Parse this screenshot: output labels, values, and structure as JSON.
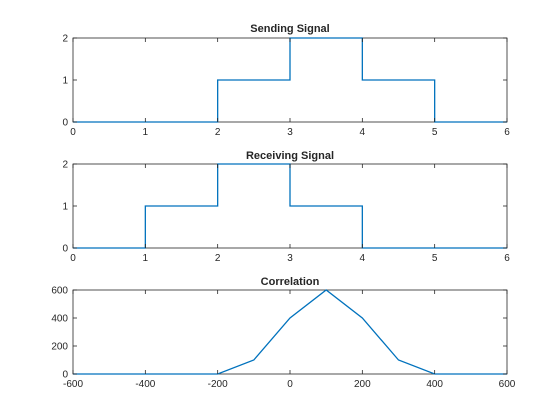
{
  "chart_data": [
    {
      "type": "line",
      "title": "Sending Signal",
      "xlim": [
        0,
        6
      ],
      "ylim": [
        0,
        2
      ],
      "xticks": [
        0,
        1,
        2,
        3,
        4,
        5,
        6
      ],
      "yticks": [
        0,
        1,
        2
      ],
      "xticklabels": [
        "0",
        "1",
        "2",
        "3",
        "4",
        "5",
        "6"
      ],
      "yticklabels": [
        "0",
        "1",
        "2"
      ],
      "series": [
        {
          "color": "#0072bd",
          "x": [
            0,
            2,
            2,
            3,
            3,
            4,
            4,
            5,
            5,
            6
          ],
          "y": [
            0,
            0,
            1,
            1,
            2,
            2,
            1,
            1,
            0,
            0
          ]
        }
      ],
      "grid": false
    },
    {
      "type": "line",
      "title": "Receiving Signal",
      "xlim": [
        0,
        6
      ],
      "ylim": [
        0,
        2
      ],
      "xticks": [
        0,
        1,
        2,
        3,
        4,
        5,
        6
      ],
      "yticks": [
        0,
        1,
        2
      ],
      "xticklabels": [
        "0",
        "1",
        "2",
        "3",
        "4",
        "5",
        "6"
      ],
      "yticklabels": [
        "0",
        "1",
        "2"
      ],
      "series": [
        {
          "color": "#0072bd",
          "x": [
            0,
            1,
            1,
            2,
            2,
            3,
            3,
            4,
            4,
            6
          ],
          "y": [
            0,
            0,
            1,
            1,
            2,
            2,
            1,
            1,
            0,
            0
          ]
        }
      ],
      "grid": false
    },
    {
      "type": "line",
      "title": "Correlation",
      "xlim": [
        -600,
        600
      ],
      "ylim": [
        0,
        600
      ],
      "xticks": [
        -600,
        -400,
        -200,
        0,
        200,
        400,
        600
      ],
      "yticks": [
        0,
        200,
        400,
        600
      ],
      "xticklabels": [
        "-600",
        "-400",
        "-200",
        "0",
        "200",
        "400",
        "600"
      ],
      "yticklabels": [
        "0",
        "200",
        "400",
        "600"
      ],
      "series": [
        {
          "color": "#0072bd",
          "x": [
            -600,
            -500,
            -400,
            -300,
            -200,
            -100,
            0,
            100,
            200,
            300,
            400,
            500,
            600
          ],
          "y": [
            0,
            0,
            0,
            0,
            0,
            100,
            400,
            600,
            400,
            100,
            0,
            0,
            0
          ]
        }
      ],
      "grid": false
    }
  ]
}
